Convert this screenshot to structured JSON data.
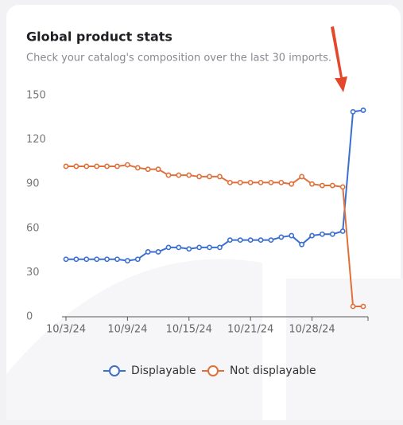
{
  "chart_data": {
    "type": "line",
    "title": "Global product stats",
    "subtitle": "Check your catalog's composition over the last 30 imports.",
    "categories": [
      "10/3/24",
      null,
      null,
      null,
      null,
      null,
      "10/9/24",
      null,
      null,
      null,
      null,
      null,
      "10/15/24",
      null,
      null,
      null,
      null,
      null,
      "10/21/24",
      null,
      null,
      null,
      null,
      null,
      "10/28/24",
      null,
      null,
      null,
      null,
      null
    ],
    "series": [
      {
        "name": "Displayable",
        "color": "#3a6fd0",
        "values": [
          39,
          39,
          39,
          39,
          39,
          39,
          38,
          39,
          44,
          44,
          47,
          47,
          46,
          47,
          47,
          47,
          52,
          52,
          52,
          52,
          52,
          54,
          55,
          49,
          55,
          56,
          56,
          58,
          139,
          140
        ]
      },
      {
        "name": "Not displayable",
        "color": "#e0703a",
        "values": [
          102,
          102,
          102,
          102,
          102,
          102,
          103,
          101,
          100,
          100,
          96,
          96,
          96,
          95,
          95,
          95,
          91,
          91,
          91,
          91,
          91,
          91,
          90,
          95,
          90,
          89,
          89,
          88,
          7,
          7
        ]
      }
    ],
    "ylim": [
      0,
      150
    ],
    "yticks": [
      0,
      30,
      60,
      90,
      120,
      150
    ],
    "grid": false,
    "legend": "bottom"
  }
}
